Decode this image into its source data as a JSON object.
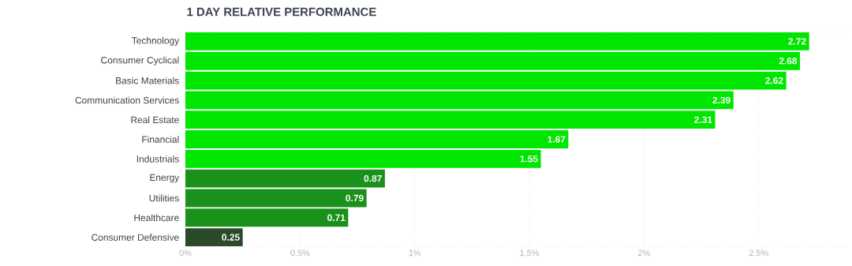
{
  "chart_data": {
    "type": "bar",
    "orientation": "horizontal",
    "title": "1 DAY RELATIVE PERFORMANCE",
    "categories": [
      "Technology",
      "Consumer Cyclical",
      "Basic Materials",
      "Communication Services",
      "Real Estate",
      "Financial",
      "Industrials",
      "Energy",
      "Utilities",
      "Healthcare",
      "Consumer Defensive"
    ],
    "values": [
      2.72,
      2.68,
      2.62,
      2.39,
      2.31,
      1.67,
      1.55,
      0.87,
      0.79,
      0.71,
      0.25
    ],
    "colors": [
      "#00e600",
      "#00e600",
      "#00e600",
      "#00e600",
      "#00e600",
      "#00e600",
      "#00e600",
      "#1a911a",
      "#1a911a",
      "#1a911a",
      "#2a4a2a"
    ],
    "xlim": [
      0,
      2.9
    ],
    "xticks": [
      {
        "value": 0,
        "label": "0%"
      },
      {
        "value": 0.5,
        "label": "0.5%"
      },
      {
        "value": 1,
        "label": "1%"
      },
      {
        "value": 1.5,
        "label": "1.5%"
      },
      {
        "value": 2,
        "label": "2%"
      },
      {
        "value": 2.5,
        "label": "2.5%"
      }
    ],
    "grid": "x",
    "data_labels": true
  }
}
